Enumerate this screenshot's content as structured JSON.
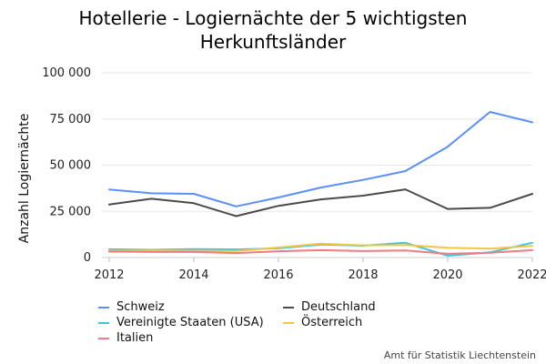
{
  "title": {
    "line1": "Hotellerie - Logiernächte der 5 wichtigsten",
    "line2": "Herkunftsländer"
  },
  "source": "Amt für Statistik Liechtenstein",
  "chart_data": {
    "type": "line",
    "title": "Hotellerie - Logiernächte der 5 wichtigsten Herkunftsländer",
    "xlabel": "",
    "ylabel": "Anzahl Logiernächte",
    "x": [
      2012,
      2013,
      2014,
      2015,
      2016,
      2017,
      2018,
      2019,
      2020,
      2021,
      2022
    ],
    "xlim": [
      2012,
      2022
    ],
    "ylim": [
      0,
      100000
    ],
    "xticks": [
      2012,
      2014,
      2016,
      2018,
      2020,
      2022
    ],
    "yticks": [
      0,
      25000,
      50000,
      75000,
      100000
    ],
    "ytick_labels": [
      "0",
      "25 000",
      "50 000",
      "75 000",
      "100 000"
    ],
    "grid": "horizontal",
    "legend_position": "bottom",
    "series": [
      {
        "name": "Schweiz",
        "color": "#5b8ff9",
        "values": [
          36800,
          34800,
          34500,
          27700,
          32500,
          37900,
          42000,
          46800,
          60000,
          78800,
          73200
        ]
      },
      {
        "name": "Deutschland",
        "color": "#4a4a4a",
        "values": [
          28700,
          31800,
          29400,
          22400,
          28000,
          31500,
          33500,
          36900,
          26300,
          26900,
          34500
        ]
      },
      {
        "name": "Vereinigte Staaten (USA)",
        "color": "#3ec6e0",
        "values": [
          4500,
          4200,
          4600,
          4400,
          5000,
          7000,
          6400,
          8000,
          1000,
          2800,
          8000
        ]
      },
      {
        "name": "Österreich",
        "color": "#f5c542",
        "values": [
          3700,
          3800,
          3700,
          3500,
          5400,
          7500,
          6600,
          6800,
          5300,
          4800,
          6300
        ]
      },
      {
        "name": "Italien",
        "color": "#f07b82",
        "values": [
          3200,
          3000,
          3000,
          2400,
          3400,
          4000,
          3500,
          3800,
          2000,
          2600,
          4000
        ]
      }
    ]
  }
}
